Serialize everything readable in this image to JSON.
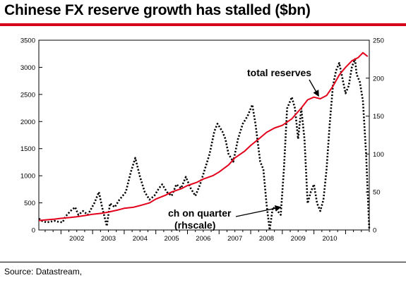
{
  "title": "Chinese FX reserve growth has stalled ($bn)",
  "source": "Source: Datastream,",
  "colors": {
    "accent": "#d6001c",
    "reserves": "#e3001b",
    "change": "#000000"
  },
  "chart_data": {
    "type": "line",
    "title": "Chinese FX reserve growth has stalled ($bn)",
    "x_tick_labels": [
      "2002",
      "2003",
      "2004",
      "2005",
      "2006",
      "2007",
      "2008",
      "2009",
      "2010"
    ],
    "y_left": {
      "ticks": [
        0,
        500,
        1000,
        1500,
        2000,
        2500,
        3000,
        3500
      ],
      "ylim": [
        0,
        3500
      ]
    },
    "y_right": {
      "ticks": [
        0,
        50,
        100,
        150,
        200,
        250
      ],
      "ylim": [
        0,
        250
      ]
    },
    "xlim": [
      2001.3,
      2011.75
    ],
    "grid": false,
    "series": [
      {
        "name": "total reserves",
        "axis": "left",
        "style": "solid-red",
        "points": [
          [
            2001.3,
            175
          ],
          [
            2001.5,
            185
          ],
          [
            2001.8,
            200
          ],
          [
            2002.0,
            215
          ],
          [
            2002.3,
            230
          ],
          [
            2002.5,
            245
          ],
          [
            2002.8,
            270
          ],
          [
            2003.0,
            290
          ],
          [
            2003.3,
            310
          ],
          [
            2003.5,
            330
          ],
          [
            2003.8,
            370
          ],
          [
            2004.0,
            400
          ],
          [
            2004.3,
            420
          ],
          [
            2004.5,
            450
          ],
          [
            2004.8,
            500
          ],
          [
            2005.0,
            570
          ],
          [
            2005.3,
            640
          ],
          [
            2005.5,
            700
          ],
          [
            2005.8,
            760
          ],
          [
            2006.0,
            820
          ],
          [
            2006.3,
            880
          ],
          [
            2006.5,
            940
          ],
          [
            2006.8,
            1000
          ],
          [
            2007.0,
            1070
          ],
          [
            2007.3,
            1200
          ],
          [
            2007.5,
            1330
          ],
          [
            2007.8,
            1450
          ],
          [
            2008.0,
            1560
          ],
          [
            2008.3,
            1700
          ],
          [
            2008.5,
            1800
          ],
          [
            2008.75,
            1880
          ],
          [
            2009.0,
            1930
          ],
          [
            2009.3,
            2050
          ],
          [
            2009.6,
            2250
          ],
          [
            2009.8,
            2400
          ],
          [
            2010.0,
            2450
          ],
          [
            2010.2,
            2420
          ],
          [
            2010.4,
            2480
          ],
          [
            2010.6,
            2650
          ],
          [
            2010.8,
            2860
          ],
          [
            2011.0,
            3000
          ],
          [
            2011.2,
            3120
          ],
          [
            2011.4,
            3180
          ],
          [
            2011.55,
            3270
          ],
          [
            2011.7,
            3200
          ]
        ]
      },
      {
        "name": "ch on quarter (rhscale)",
        "axis": "right",
        "style": "dotted-black",
        "points": [
          [
            2001.3,
            15
          ],
          [
            2001.4,
            12
          ],
          [
            2001.55,
            10
          ],
          [
            2001.8,
            12
          ],
          [
            2001.9,
            11
          ],
          [
            2002.05,
            10
          ],
          [
            2002.15,
            18
          ],
          [
            2002.3,
            25
          ],
          [
            2002.45,
            30
          ],
          [
            2002.55,
            20
          ],
          [
            2002.7,
            25
          ],
          [
            2002.85,
            20
          ],
          [
            2003.05,
            35
          ],
          [
            2003.2,
            50
          ],
          [
            2003.3,
            30
          ],
          [
            2003.45,
            5
          ],
          [
            2003.55,
            35
          ],
          [
            2003.7,
            30
          ],
          [
            2003.85,
            40
          ],
          [
            2004.05,
            50
          ],
          [
            2004.2,
            75
          ],
          [
            2004.35,
            95
          ],
          [
            2004.5,
            70
          ],
          [
            2004.65,
            50
          ],
          [
            2004.8,
            40
          ],
          [
            2004.95,
            45
          ],
          [
            2005.1,
            55
          ],
          [
            2005.2,
            60
          ],
          [
            2005.35,
            50
          ],
          [
            2005.5,
            45
          ],
          [
            2005.65,
            60
          ],
          [
            2005.8,
            55
          ],
          [
            2005.95,
            70
          ],
          [
            2006.1,
            55
          ],
          [
            2006.25,
            45
          ],
          [
            2006.4,
            60
          ],
          [
            2006.55,
            80
          ],
          [
            2006.7,
            100
          ],
          [
            2006.85,
            130
          ],
          [
            2006.95,
            140
          ],
          [
            2007.1,
            130
          ],
          [
            2007.2,
            120
          ],
          [
            2007.3,
            100
          ],
          [
            2007.45,
            90
          ],
          [
            2007.6,
            120
          ],
          [
            2007.75,
            140
          ],
          [
            2007.9,
            150
          ],
          [
            2008.05,
            165
          ],
          [
            2008.15,
            140
          ],
          [
            2008.3,
            90
          ],
          [
            2008.4,
            80
          ],
          [
            2008.5,
            35
          ],
          [
            2008.6,
            0
          ],
          [
            2008.7,
            30
          ],
          [
            2008.85,
            25
          ],
          [
            2008.95,
            20
          ],
          [
            2009.05,
            80
          ],
          [
            2009.15,
            160
          ],
          [
            2009.3,
            175
          ],
          [
            2009.4,
            160
          ],
          [
            2009.5,
            120
          ],
          [
            2009.6,
            160
          ],
          [
            2009.7,
            120
          ],
          [
            2009.8,
            35
          ],
          [
            2009.9,
            50
          ],
          [
            2010.0,
            60
          ],
          [
            2010.1,
            35
          ],
          [
            2010.2,
            25
          ],
          [
            2010.3,
            40
          ],
          [
            2010.4,
            80
          ],
          [
            2010.5,
            140
          ],
          [
            2010.6,
            190
          ],
          [
            2010.7,
            210
          ],
          [
            2010.8,
            220
          ],
          [
            2010.9,
            200
          ],
          [
            2011.0,
            180
          ],
          [
            2011.1,
            190
          ],
          [
            2011.2,
            215
          ],
          [
            2011.3,
            225
          ],
          [
            2011.35,
            205
          ],
          [
            2011.45,
            195
          ],
          [
            2011.55,
            170
          ],
          [
            2011.65,
            100
          ],
          [
            2011.75,
            0
          ]
        ]
      }
    ],
    "annotations": [
      {
        "text": "total reserves",
        "target": [
          2010.15,
          2470
        ],
        "axis": "left"
      },
      {
        "line1": "ch on quarter",
        "line2": "(rhscale)",
        "target": [
          2008.95,
          30
        ],
        "axis": "right"
      }
    ]
  }
}
